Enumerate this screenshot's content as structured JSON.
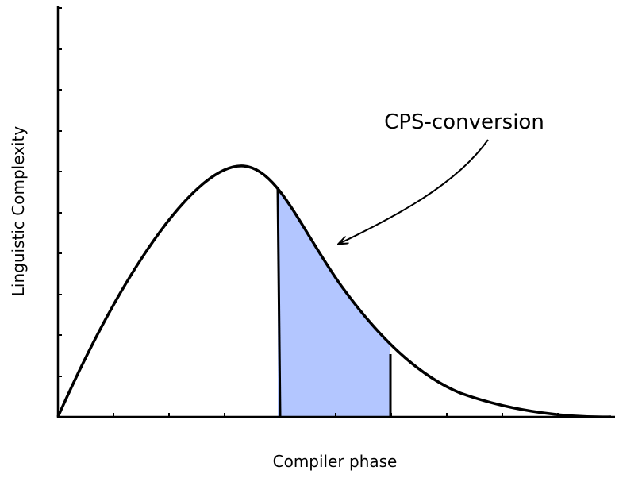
{
  "annotation": "CPS-conversion",
  "y_axis_label": "Linguistic Complexity",
  "x_axis_label": "Compiler phase"
}
